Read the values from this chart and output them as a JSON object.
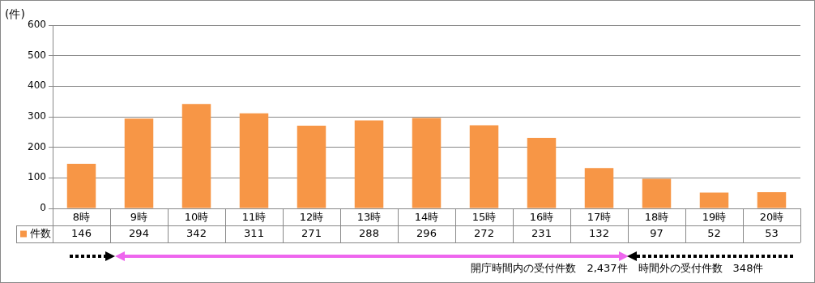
{
  "chart_data": {
    "type": "bar",
    "ylabel": "(件)",
    "categories": [
      "8時",
      "9時",
      "10時",
      "11時",
      "12時",
      "13時",
      "14時",
      "15時",
      "16時",
      "17時",
      "18時",
      "19時",
      "20時"
    ],
    "series": [
      {
        "name": "件数",
        "color": "#f79646",
        "values": [
          146,
          294,
          342,
          311,
          271,
          288,
          296,
          272,
          231,
          132,
          97,
          52,
          53
        ]
      }
    ],
    "ylim": [
      0,
      600
    ],
    "yticks": [
      0,
      100,
      200,
      300,
      400,
      500,
      600
    ],
    "grid": "y",
    "legend": "bottom left",
    "data_labels": true,
    "annotations": [
      "開庁時間内の受付件数　2,437件",
      "時間外の受付件数　348件"
    ]
  }
}
